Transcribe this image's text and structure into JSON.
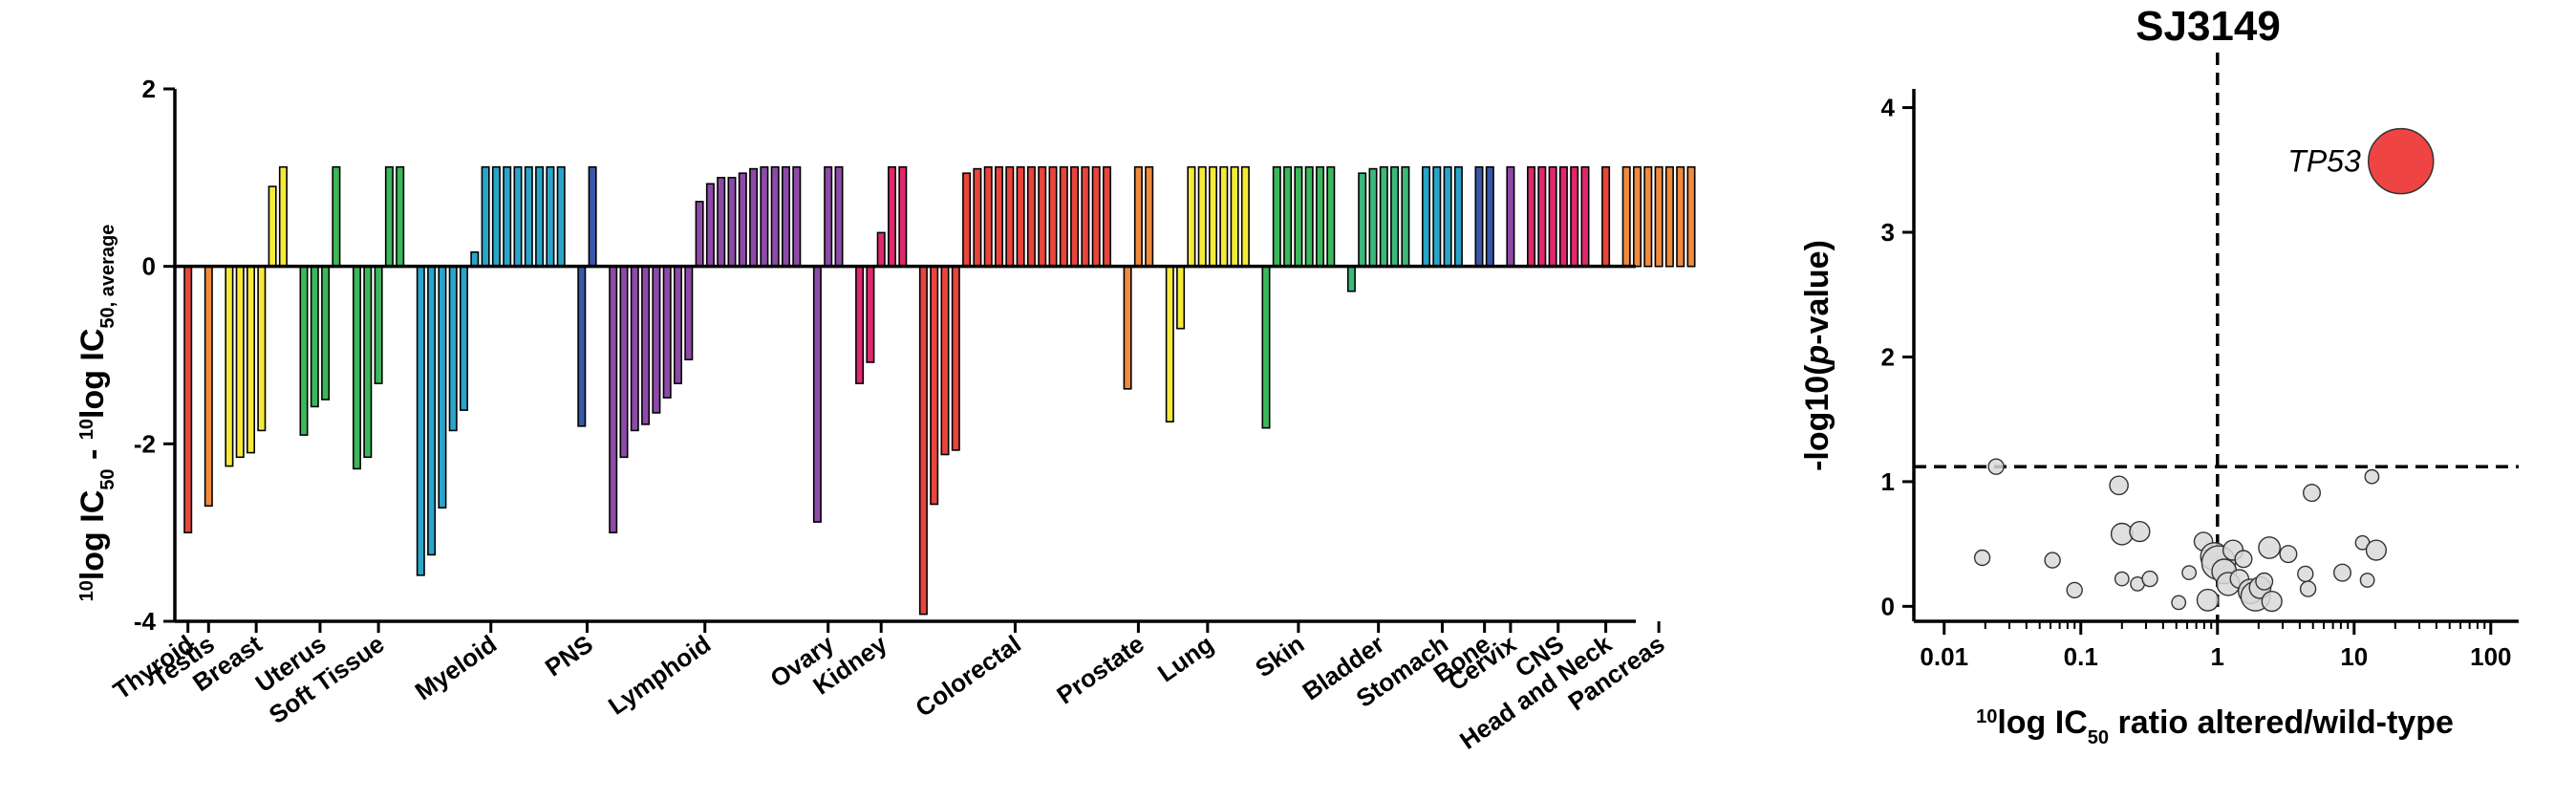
{
  "chart_data": [
    {
      "type": "bar",
      "ylabel": "¹⁰log IC₅₀ - ¹⁰log IC₅₀, average",
      "ylim": [
        -4,
        2
      ],
      "yticks": [
        "2",
        "0",
        "-2",
        "-4"
      ],
      "groups": [
        {
          "name": "Thyroid",
          "color": "#e8453c",
          "values": [
            -3.0
          ]
        },
        {
          "name": "Testis",
          "color": "#f08a3c",
          "values": [
            -2.7
          ]
        },
        {
          "name": "Breast",
          "color": "#f5ea3a",
          "values": [
            -2.25,
            -2.15,
            -2.1,
            -1.85,
            0.9,
            1.12
          ]
        },
        {
          "name": "Uterus",
          "color": "#3cb85a",
          "values": [
            -1.9,
            -1.58,
            -1.5,
            1.12
          ]
        },
        {
          "name": "Soft Tissue",
          "color": "#3cb85a",
          "values": [
            -2.28,
            -2.15,
            -1.32,
            1.12,
            1.12
          ]
        },
        {
          "name": "Myeloid",
          "color": "#2aa5c9",
          "values": [
            -3.48,
            -3.25,
            -2.72,
            -1.85,
            -1.62,
            0.16,
            1.12,
            1.12,
            1.12,
            1.12,
            1.12,
            1.12,
            1.12,
            1.12
          ]
        },
        {
          "name": "PNS",
          "color": "#3a56a8",
          "values": [
            -1.8,
            1.12
          ]
        },
        {
          "name": "Lymphoid",
          "color": "#8e4aa8",
          "values": [
            -3.0,
            -2.15,
            -1.85,
            -1.78,
            -1.65,
            -1.48,
            -1.32,
            -1.05,
            0.73,
            0.93,
            1.0,
            1.0,
            1.05,
            1.1,
            1.12,
            1.12,
            1.12,
            1.12
          ]
        },
        {
          "name": "Ovary",
          "color": "#8e4aa8",
          "values": [
            -2.88,
            1.12,
            1.12
          ]
        },
        {
          "name": "Kidney",
          "color": "#e0286e",
          "values": [
            -1.32,
            -1.08,
            0.38,
            1.12,
            1.12
          ]
        },
        {
          "name": "Colorectal",
          "color": "#e8453c",
          "values": [
            -3.92,
            -2.68,
            -2.12,
            -2.07,
            1.05,
            1.1,
            1.12,
            1.12,
            1.12,
            1.12,
            1.12,
            1.12,
            1.12,
            1.12,
            1.12,
            1.12,
            1.12,
            1.12
          ]
        },
        {
          "name": "Prostate",
          "color": "#f08a3c",
          "values": [
            -1.38,
            1.12,
            1.12
          ]
        },
        {
          "name": "Lung",
          "color": "#f5ea3a",
          "values": [
            -1.75,
            -0.7,
            1.12,
            1.12,
            1.12,
            1.12,
            1.12,
            1.12
          ]
        },
        {
          "name": "Skin",
          "color": "#3cb85a",
          "values": [
            -1.82,
            1.12,
            1.12,
            1.12,
            1.12,
            1.12,
            1.12
          ]
        },
        {
          "name": "Bladder",
          "color": "#3cb87a",
          "values": [
            -0.28,
            1.05,
            1.1,
            1.12,
            1.12,
            1.12
          ]
        },
        {
          "name": "Stomach",
          "color": "#2aa5c9",
          "values": [
            1.12,
            1.12,
            1.12,
            1.12
          ]
        },
        {
          "name": "Bone",
          "color": "#3a56a8",
          "values": [
            1.12,
            1.12
          ]
        },
        {
          "name": "Cervix",
          "color": "#8e4aa8",
          "values": [
            1.12
          ]
        },
        {
          "name": "CNS",
          "color": "#e0286e",
          "values": [
            1.12,
            1.12,
            1.12,
            1.12,
            1.12,
            1.12
          ]
        },
        {
          "name": "Head and Neck",
          "color": "#e8453c",
          "values": [
            1.12
          ]
        },
        {
          "name": "Pancreas",
          "color": "#f08a3c",
          "values": [
            1.12,
            1.12,
            1.12,
            1.12,
            1.12,
            1.12,
            1.12
          ]
        }
      ]
    },
    {
      "type": "scatter",
      "title": "SJ3149",
      "xlabel": "¹⁰log IC₅₀ ratio altered/wild-type",
      "ylabel": "-log10(p-value)",
      "xscale": "log",
      "xlim": [
        0.006,
        160
      ],
      "ylim": [
        -0.12,
        4.15
      ],
      "xticks": [
        {
          "v": 0.01,
          "label": "0.01"
        },
        {
          "v": 0.1,
          "label": "0.1"
        },
        {
          "v": 1,
          "label": "1"
        },
        {
          "v": 10,
          "label": "10"
        },
        {
          "v": 100,
          "label": "100"
        }
      ],
      "yticks": [
        {
          "v": 0,
          "label": "0"
        },
        {
          "v": 1,
          "label": "1"
        },
        {
          "v": 2,
          "label": "2"
        },
        {
          "v": 3,
          "label": "3"
        },
        {
          "v": 4,
          "label": "4"
        }
      ],
      "reference_lines": {
        "x": 1,
        "y": 1.12
      },
      "highlight": {
        "label": "TP53",
        "x": 22,
        "y": 3.57,
        "color": "#ee4444"
      },
      "points": [
        {
          "x": 0.024,
          "y": 1.12,
          "s": 1
        },
        {
          "x": 0.019,
          "y": 0.39,
          "s": 1
        },
        {
          "x": 0.062,
          "y": 0.37,
          "s": 1
        },
        {
          "x": 0.09,
          "y": 0.13,
          "s": 1
        },
        {
          "x": 0.19,
          "y": 0.97,
          "s": 1.2
        },
        {
          "x": 0.2,
          "y": 0.58,
          "s": 1.4
        },
        {
          "x": 0.27,
          "y": 0.6,
          "s": 1.3
        },
        {
          "x": 0.2,
          "y": 0.22,
          "s": 0.9
        },
        {
          "x": 0.26,
          "y": 0.18,
          "s": 0.9
        },
        {
          "x": 0.32,
          "y": 0.22,
          "s": 1
        },
        {
          "x": 0.52,
          "y": 0.03,
          "s": 0.9
        },
        {
          "x": 0.62,
          "y": 0.27,
          "s": 0.9
        },
        {
          "x": 0.79,
          "y": 0.52,
          "s": 1.2
        },
        {
          "x": 0.85,
          "y": 0.05,
          "s": 1.4
        },
        {
          "x": 0.95,
          "y": 0.4,
          "s": 1.8
        },
        {
          "x": 1.02,
          "y": 0.35,
          "s": 2.2
        },
        {
          "x": 1.12,
          "y": 0.28,
          "s": 1.6
        },
        {
          "x": 1.2,
          "y": 0.18,
          "s": 1.5
        },
        {
          "x": 1.3,
          "y": 0.45,
          "s": 1.3
        },
        {
          "x": 1.45,
          "y": 0.22,
          "s": 1.2
        },
        {
          "x": 1.55,
          "y": 0.38,
          "s": 1.1
        },
        {
          "x": 1.75,
          "y": 0.12,
          "s": 1.6
        },
        {
          "x": 1.9,
          "y": 0.08,
          "s": 1.9
        },
        {
          "x": 2.05,
          "y": 0.15,
          "s": 1.4
        },
        {
          "x": 2.2,
          "y": 0.2,
          "s": 1.1
        },
        {
          "x": 2.5,
          "y": 0.04,
          "s": 1.3
        },
        {
          "x": 2.4,
          "y": 0.47,
          "s": 1.4
        },
        {
          "x": 3.3,
          "y": 0.42,
          "s": 1.1
        },
        {
          "x": 4.4,
          "y": 0.26,
          "s": 1
        },
        {
          "x": 4.6,
          "y": 0.14,
          "s": 1
        },
        {
          "x": 4.9,
          "y": 0.91,
          "s": 1.1
        },
        {
          "x": 8.2,
          "y": 0.27,
          "s": 1.1
        },
        {
          "x": 11.5,
          "y": 0.51,
          "s": 0.9
        },
        {
          "x": 12.5,
          "y": 0.21,
          "s": 0.9
        },
        {
          "x": 14.5,
          "y": 0.45,
          "s": 1.3
        },
        {
          "x": 13.5,
          "y": 1.04,
          "s": 0.9
        }
      ]
    }
  ]
}
